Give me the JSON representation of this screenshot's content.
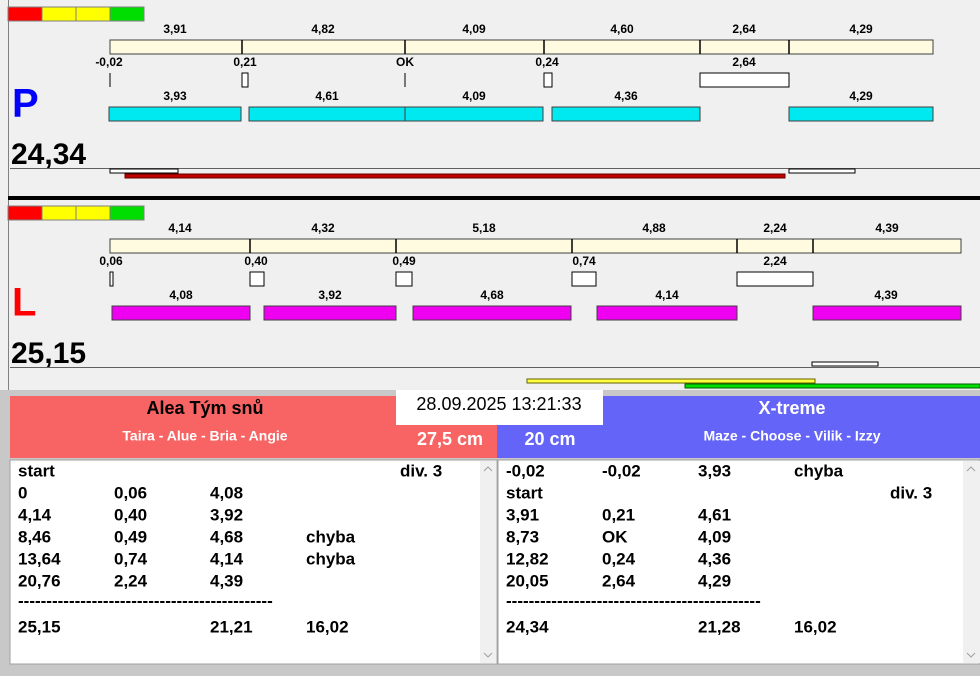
{
  "lanes": [
    {
      "letter": "P",
      "total": "24,34",
      "top_labels": [
        "3,91",
        "4,82",
        "4,09",
        "4,60",
        "2,64",
        "4,29"
      ],
      "mid_labels": [
        "-0,02",
        "0,21",
        "OK",
        "0,24",
        "2,64"
      ],
      "bar_labels": [
        "3,93",
        "4,61",
        "4,09",
        "4,36",
        "4,29"
      ]
    },
    {
      "letter": "L",
      "total": "25,15",
      "top_labels": [
        "4,14",
        "4,32",
        "5,18",
        "4,88",
        "2,24",
        "4,39"
      ],
      "mid_labels": [
        "0,06",
        "0,40",
        "0,49",
        "0,74",
        "2,24"
      ],
      "bar_labels": [
        "4,08",
        "3,92",
        "4,68",
        "4,14",
        "4,39"
      ]
    }
  ],
  "timestamp": "28.09.2025 13:21:33",
  "teams": [
    {
      "name": "Alea Tým snů",
      "members": "Taira - Alue - Bria - Angie",
      "height": "27,5 cm",
      "rows": [
        {
          "time": "start",
          "div": "div. 3"
        },
        {
          "time": "0",
          "fault": "0,06",
          "segment": "4,08"
        },
        {
          "time": "4,14",
          "fault": "0,40",
          "segment": "3,92"
        },
        {
          "time": "8,46",
          "fault": "0,49",
          "segment": "4,68",
          "note": "chyba"
        },
        {
          "time": "13,64",
          "fault": "0,74",
          "segment": "4,14",
          "note": "chyba"
        },
        {
          "time": "20,76",
          "fault": "2,24",
          "segment": "4,39"
        },
        {
          "time": "---------------------------------------------"
        },
        {
          "time": "25,15",
          "segment": "21,21",
          "note": "16,02"
        }
      ]
    },
    {
      "name": "X-treme",
      "members": "Maze - Choose - Vilik - Izzy",
      "height": "20 cm",
      "rows": [
        {
          "time": "-0,02",
          "fault": "-0,02",
          "segment": "3,93",
          "note": "chyba"
        },
        {
          "time": "start",
          "div": "div. 3"
        },
        {
          "time": "3,91",
          "fault": "0,21",
          "segment": "4,61"
        },
        {
          "time": "8,73",
          "fault": "OK",
          "segment": "4,09"
        },
        {
          "time": "12,82",
          "fault": "0,24",
          "segment": "4,36"
        },
        {
          "time": "20,05",
          "fault": "2,64",
          "segment": "4,29"
        },
        {
          "time": "---------------------------------------------"
        },
        {
          "time": "24,34",
          "segment": "21,28",
          "note": "16,02"
        }
      ]
    }
  ]
}
